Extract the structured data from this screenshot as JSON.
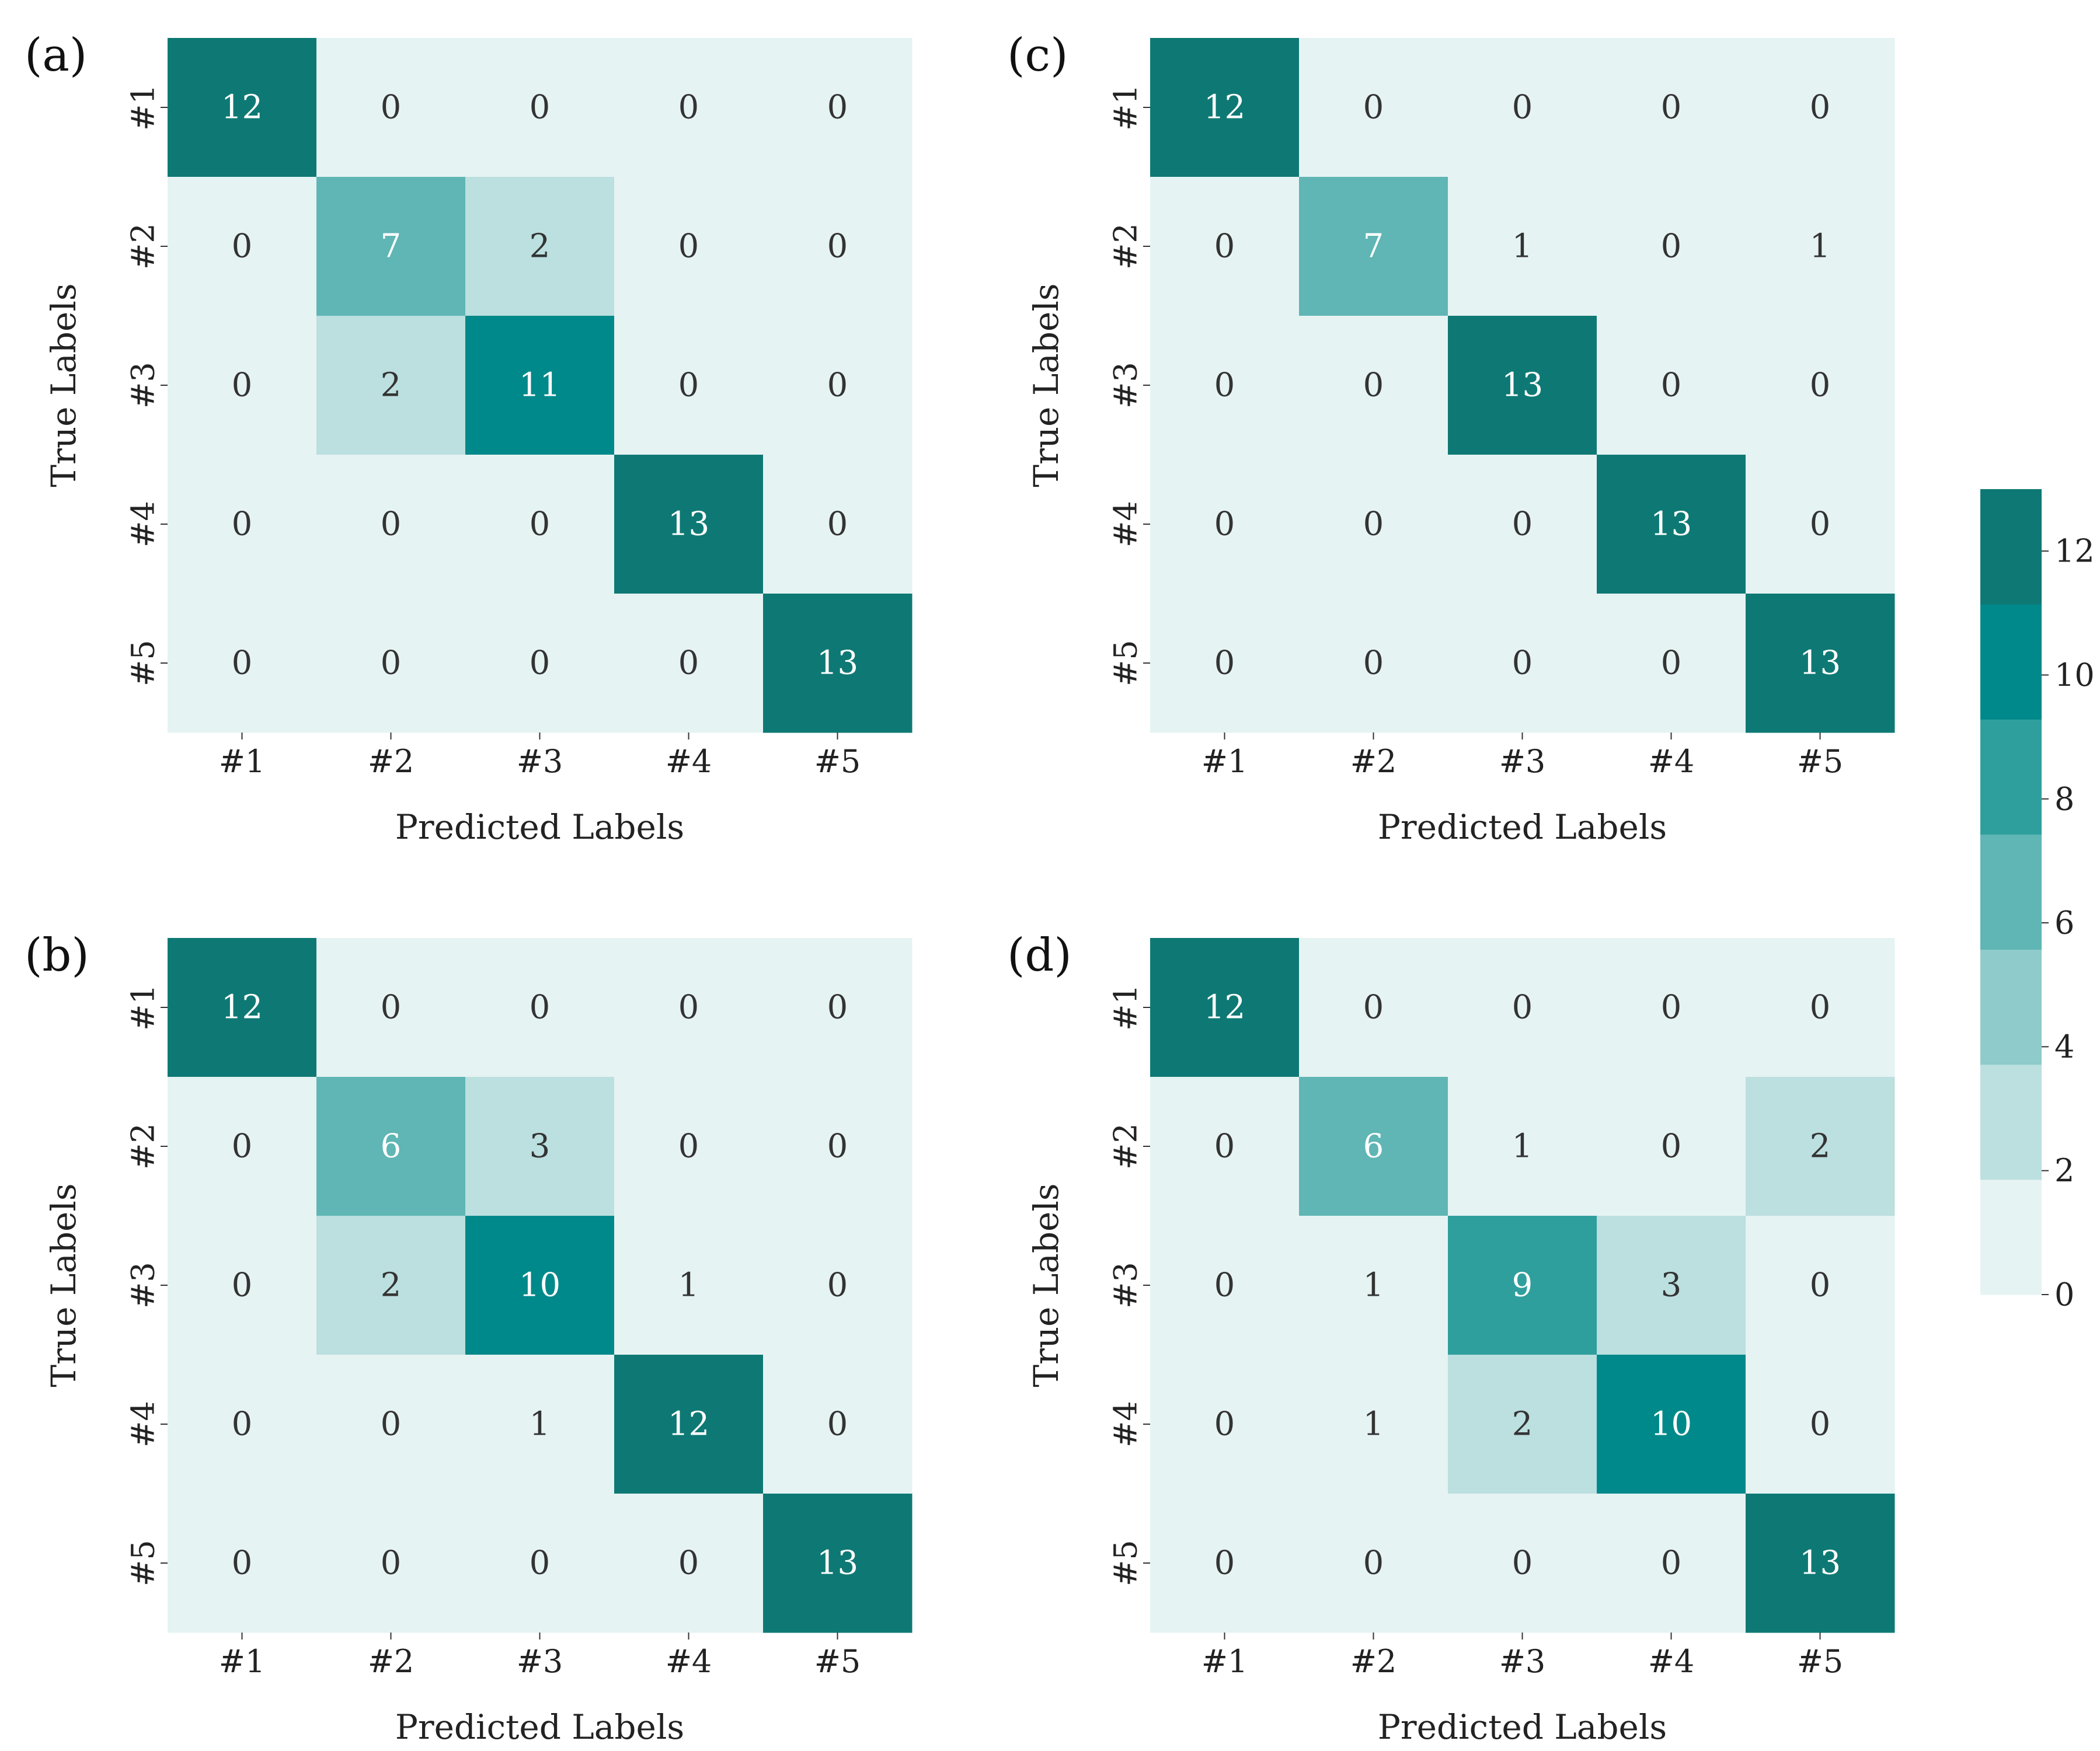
{
  "chart_data": [
    {
      "type": "heatmap",
      "panel_label": "(a)",
      "xlabel": "Predicted Labels",
      "ylabel": "True Labels",
      "x_tick_labels": [
        "#1",
        "#2",
        "#3",
        "#4",
        "#5"
      ],
      "y_tick_labels": [
        "#1",
        "#2",
        "#3",
        "#4",
        "#5"
      ],
      "matrix": [
        [
          12,
          0,
          0,
          0,
          0
        ],
        [
          0,
          7,
          2,
          0,
          0
        ],
        [
          0,
          2,
          11,
          0,
          0
        ],
        [
          0,
          0,
          0,
          13,
          0
        ],
        [
          0,
          0,
          0,
          0,
          13
        ]
      ]
    },
    {
      "type": "heatmap",
      "panel_label": "(b)",
      "xlabel": "Predicted Labels",
      "ylabel": "True Labels",
      "x_tick_labels": [
        "#1",
        "#2",
        "#3",
        "#4",
        "#5"
      ],
      "y_tick_labels": [
        "#1",
        "#2",
        "#3",
        "#4",
        "#5"
      ],
      "matrix": [
        [
          12,
          0,
          0,
          0,
          0
        ],
        [
          0,
          6,
          3,
          0,
          0
        ],
        [
          0,
          2,
          10,
          1,
          0
        ],
        [
          0,
          0,
          1,
          12,
          0
        ],
        [
          0,
          0,
          0,
          0,
          13
        ]
      ]
    },
    {
      "type": "heatmap",
      "panel_label": "(c)",
      "xlabel": "Predicted Labels",
      "ylabel": "True Labels",
      "x_tick_labels": [
        "#1",
        "#2",
        "#3",
        "#4",
        "#5"
      ],
      "y_tick_labels": [
        "#1",
        "#2",
        "#3",
        "#4",
        "#5"
      ],
      "matrix": [
        [
          12,
          0,
          0,
          0,
          0
        ],
        [
          0,
          7,
          1,
          0,
          1
        ],
        [
          0,
          0,
          13,
          0,
          0
        ],
        [
          0,
          0,
          0,
          13,
          0
        ],
        [
          0,
          0,
          0,
          0,
          13
        ]
      ]
    },
    {
      "type": "heatmap",
      "panel_label": "(d)",
      "xlabel": "Predicted Labels",
      "ylabel": "True Labels",
      "x_tick_labels": [
        "#1",
        "#2",
        "#3",
        "#4",
        "#5"
      ],
      "y_tick_labels": [
        "#1",
        "#2",
        "#3",
        "#4",
        "#5"
      ],
      "matrix": [
        [
          12,
          0,
          0,
          0,
          0
        ],
        [
          0,
          6,
          1,
          0,
          2
        ],
        [
          0,
          1,
          9,
          3,
          0
        ],
        [
          0,
          1,
          2,
          10,
          0
        ],
        [
          0,
          0,
          0,
          0,
          13
        ]
      ]
    }
  ],
  "colorbar": {
    "range": [
      0,
      13
    ],
    "ticks": [
      0,
      2,
      4,
      6,
      8,
      10,
      12
    ],
    "tick_labels": [
      "0",
      "2",
      "4",
      "6",
      "8",
      "10",
      "12"
    ],
    "bin_colors": [
      "#e6f3f3",
      "#bcdfdf",
      "#8ecbca",
      "#5fb6b4",
      "#2f9f9d",
      "#00898a",
      "#0e7974"
    ]
  },
  "text_colors": {
    "dark_text": "#333333",
    "light_text": "#ffffff"
  }
}
